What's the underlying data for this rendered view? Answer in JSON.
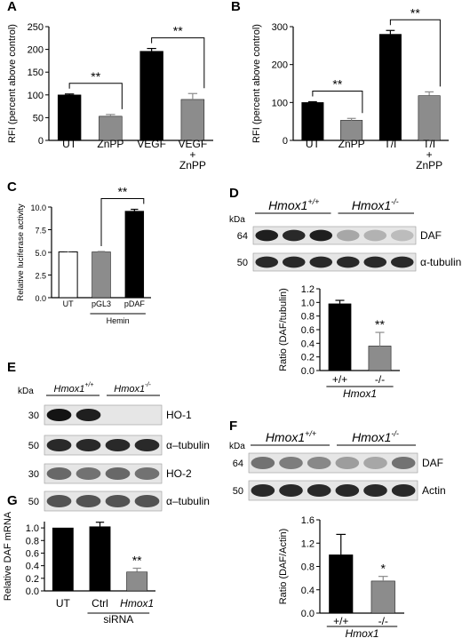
{
  "chart_data": [
    {
      "id": "A",
      "type": "bar",
      "panel_label": "A",
      "ylabel": "RFI (percent above control)",
      "ylim": [
        0,
        250
      ],
      "yticks": [
        "0",
        "50",
        "100",
        "150",
        "200",
        "250"
      ],
      "categories": [
        [
          "UT"
        ],
        [
          "ZnPP"
        ],
        [
          "VEGF"
        ],
        [
          "VEGF",
          "+",
          "ZnPP"
        ]
      ],
      "values": [
        100,
        53,
        196,
        90
      ],
      "errors": [
        2,
        4,
        6,
        13
      ],
      "colors": [
        "#000000",
        "#8c8c8c",
        "#000000",
        "#8c8c8c"
      ],
      "significance": [
        {
          "from": 0,
          "to": 1,
          "label": "**"
        },
        {
          "from": 2,
          "to": 3,
          "label": "**"
        }
      ]
    },
    {
      "id": "B",
      "type": "bar",
      "panel_label": "B",
      "ylabel": "RFI (percent above control)",
      "ylim": [
        0,
        300
      ],
      "yticks": [
        "0",
        "100",
        "200",
        "300"
      ],
      "categories": [
        [
          "UT"
        ],
        [
          "ZnPP"
        ],
        [
          "T/I"
        ],
        [
          "T/I",
          "+",
          "ZnPP"
        ]
      ],
      "values": [
        100,
        53,
        280,
        118
      ],
      "errors": [
        2,
        5,
        10,
        10
      ],
      "colors": [
        "#000000",
        "#8c8c8c",
        "#000000",
        "#8c8c8c"
      ],
      "significance": [
        {
          "from": 0,
          "to": 1,
          "label": "**"
        },
        {
          "from": 2,
          "to": 3,
          "label": "**"
        }
      ]
    },
    {
      "id": "C",
      "type": "bar",
      "panel_label": "C",
      "ylabel": "Relative luciferase activity",
      "ylim": [
        0,
        10
      ],
      "yticks": [
        "0.0",
        "2.5",
        "5.0",
        "7.5",
        "10.0"
      ],
      "categories": [
        [
          "UT"
        ],
        [
          "pGL3"
        ],
        [
          "pDAF"
        ]
      ],
      "group_label": "Hemin",
      "values": [
        5.05,
        5.05,
        9.55
      ],
      "errors": [
        0.1,
        0.05,
        0.2
      ],
      "colors": [
        "#ffffff",
        "#8c8c8c",
        "#000000"
      ],
      "significance": [
        {
          "from": 1,
          "to": 2,
          "label": "**"
        }
      ]
    },
    {
      "id": "D",
      "type": "bar",
      "ylabel": "Ratio (DAF/tubulin)",
      "ylim": [
        0,
        1.2
      ],
      "yticks": [
        "0.0",
        "0.2",
        "0.4",
        "0.6",
        "0.8",
        "1.0",
        "1.2"
      ],
      "categories": [
        [
          "+/+"
        ],
        [
          "-/-"
        ]
      ],
      "group_label": "Hmox1",
      "values": [
        0.98,
        0.36
      ],
      "errors": [
        0.05,
        0.2
      ],
      "colors": [
        "#000000",
        "#8c8c8c"
      ],
      "bar_marks": [
        "",
        "**"
      ]
    },
    {
      "id": "F",
      "type": "bar",
      "ylabel": "Ratio (DAF/Actin)",
      "ylim": [
        0,
        1.6
      ],
      "yticks": [
        "0.0",
        "0.4",
        "0.8",
        "1.2",
        "1.6"
      ],
      "categories": [
        [
          "+/+"
        ],
        [
          "-/-"
        ]
      ],
      "group_label": "Hmox1",
      "values": [
        1.0,
        0.55
      ],
      "errors": [
        0.35,
        0.08
      ],
      "colors": [
        "#000000",
        "#8c8c8c"
      ],
      "bar_marks": [
        "",
        "*"
      ]
    },
    {
      "id": "G",
      "type": "bar",
      "panel_label": "G",
      "ylabel": "Relative DAF mRNA",
      "ylim": [
        0,
        1.1
      ],
      "yticks": [
        "0.0",
        "0.2",
        "0.4",
        "0.6",
        "0.8",
        "1.0"
      ],
      "categories": [
        [
          "UT"
        ],
        [
          "Ctrl"
        ],
        [
          "Hmox1"
        ]
      ],
      "group_label": "siRNA",
      "values": [
        1.0,
        1.02,
        0.3
      ],
      "errors": [
        0.0,
        0.07,
        0.06
      ],
      "colors": [
        "#000000",
        "#000000",
        "#8c8c8c"
      ],
      "bar_marks": [
        "",
        "",
        "**"
      ]
    }
  ],
  "blots": {
    "D": {
      "panel_label": "D",
      "kda": "kDa",
      "group1": "Hmox1",
      "group1_sup": "+/+",
      "group2": "Hmox1",
      "group2_sup": "-/-",
      "rows": [
        {
          "marker": "64",
          "label": "DAF",
          "intensity": [
            0.95,
            0.9,
            0.95,
            0.3,
            0.25,
            0.2
          ]
        },
        {
          "marker": "50",
          "label": "α-tubulin",
          "intensity": [
            0.9,
            0.9,
            0.9,
            0.9,
            0.9,
            0.9
          ]
        }
      ]
    },
    "E": {
      "panel_label": "E",
      "kda": "kDa",
      "group1": "Hmox1",
      "group1_sup": "+/+",
      "group2": "Hmox1",
      "group2_sup": "-/-",
      "rows": [
        {
          "marker": "30",
          "label": "HO-1",
          "intensity": [
            1.0,
            0.95,
            0.0,
            0.0
          ]
        },
        {
          "marker": "50",
          "label": "α–tubulin",
          "intensity": [
            0.9,
            0.9,
            0.9,
            0.9
          ]
        },
        {
          "marker": "30",
          "label": "HO-2",
          "intensity": [
            0.6,
            0.55,
            0.6,
            0.55
          ]
        },
        {
          "marker": "50",
          "label": "α–tubulin",
          "intensity": [
            0.7,
            0.7,
            0.7,
            0.7
          ]
        }
      ]
    },
    "F": {
      "panel_label": "F",
      "kda": "kDa",
      "group1": "Hmox1",
      "group1_sup": "+/+",
      "group2": "Hmox1",
      "group2_sup": "-/-",
      "rows": [
        {
          "marker": "64",
          "label": "DAF",
          "intensity": [
            0.55,
            0.5,
            0.45,
            0.35,
            0.3,
            0.55
          ]
        },
        {
          "marker": "50",
          "label": "Actin",
          "intensity": [
            0.9,
            0.9,
            0.9,
            0.9,
            0.9,
            0.9
          ]
        }
      ]
    }
  }
}
